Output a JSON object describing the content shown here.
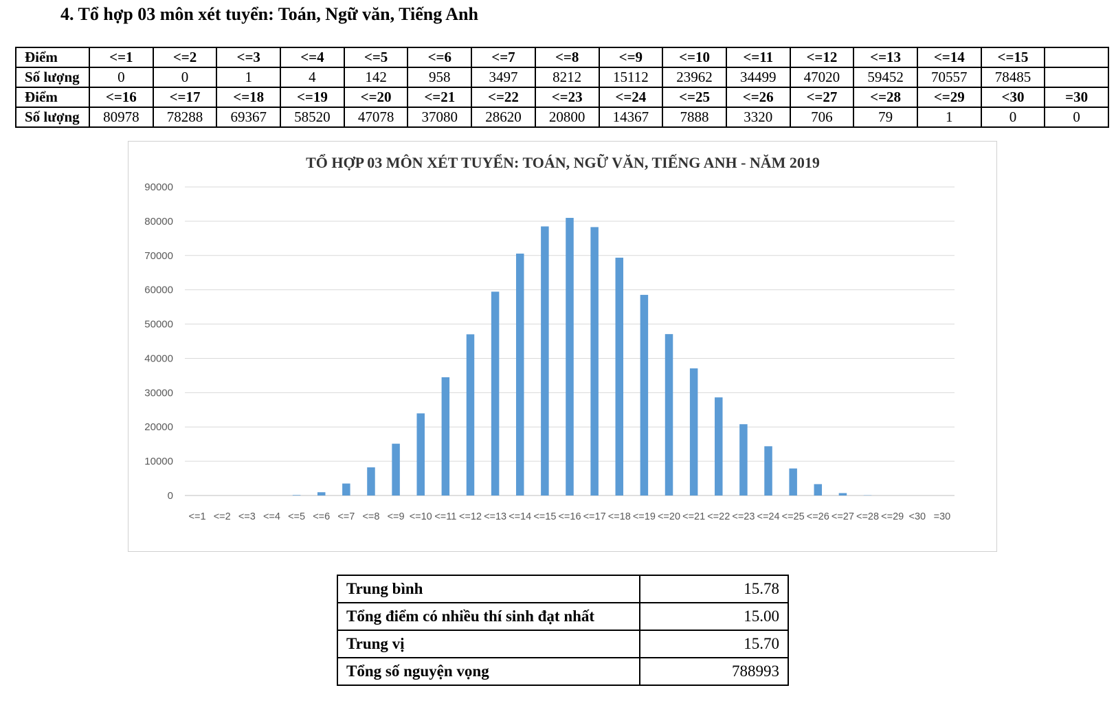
{
  "heading": "4. Tổ hợp 03 môn xét tuyển: Toán, Ngữ văn, Tiếng Anh",
  "table": {
    "score_label": "Điểm",
    "count_label": "Số lượng",
    "rows": [
      {
        "scores": [
          "<=1",
          "<=2",
          "<=3",
          "<=4",
          "<=5",
          "<=6",
          "<=7",
          "<=8",
          "<=9",
          "<=10",
          "<=11",
          "<=12",
          "<=13",
          "<=14",
          "<=15",
          ""
        ],
        "counts": [
          "0",
          "0",
          "1",
          "4",
          "142",
          "958",
          "3497",
          "8212",
          "15112",
          "23962",
          "34499",
          "47020",
          "59452",
          "70557",
          "78485",
          ""
        ]
      },
      {
        "scores": [
          "<=16",
          "<=17",
          "<=18",
          "<=19",
          "<=20",
          "<=21",
          "<=22",
          "<=23",
          "<=24",
          "<=25",
          "<=26",
          "<=27",
          "<=28",
          "<=29",
          "<30",
          "=30"
        ],
        "counts": [
          "80978",
          "78288",
          "69367",
          "58520",
          "47078",
          "37080",
          "28620",
          "20800",
          "14367",
          "7888",
          "3320",
          "706",
          "79",
          "1",
          "0",
          "0"
        ]
      }
    ]
  },
  "chart_data": {
    "type": "bar",
    "title": "TỔ HỢP 03 MÔN XÉT TUYỂN: TOÁN, NGỮ VĂN, TIẾNG ANH - NĂM 2019",
    "xlabel": "",
    "ylabel": "",
    "ylim": [
      0,
      90000
    ],
    "yticks": [
      0,
      10000,
      20000,
      30000,
      40000,
      50000,
      60000,
      70000,
      80000,
      90000
    ],
    "grid": true,
    "bar_color": "#5B9BD5",
    "categories": [
      "<=1",
      "<=2",
      "<=3",
      "<=4",
      "<=5",
      "<=6",
      "<=7",
      "<=8",
      "<=9",
      "<=10",
      "<=11",
      "<=12",
      "<=13",
      "<=14",
      "<=15",
      "<=16",
      "<=17",
      "<=18",
      "<=19",
      "<=20",
      "<=21",
      "<=22",
      "<=23",
      "<=24",
      "<=25",
      "<=26",
      "<=27",
      "<=28",
      "<=29",
      "<30",
      "=30"
    ],
    "values": [
      0,
      0,
      1,
      4,
      142,
      958,
      3497,
      8212,
      15112,
      23962,
      34499,
      47020,
      59452,
      70557,
      78485,
      80978,
      78288,
      69367,
      58520,
      47078,
      37080,
      28620,
      20800,
      14367,
      7888,
      3320,
      706,
      79,
      1,
      0,
      0
    ]
  },
  "stats": [
    {
      "label": "Trung bình",
      "value": "15.78"
    },
    {
      "label": "Tổng điểm có nhiều thí sinh đạt nhất",
      "value": "15.00"
    },
    {
      "label": "Trung vị",
      "value": "15.70"
    },
    {
      "label": "Tổng số nguyện vọng",
      "value": "788993"
    }
  ]
}
